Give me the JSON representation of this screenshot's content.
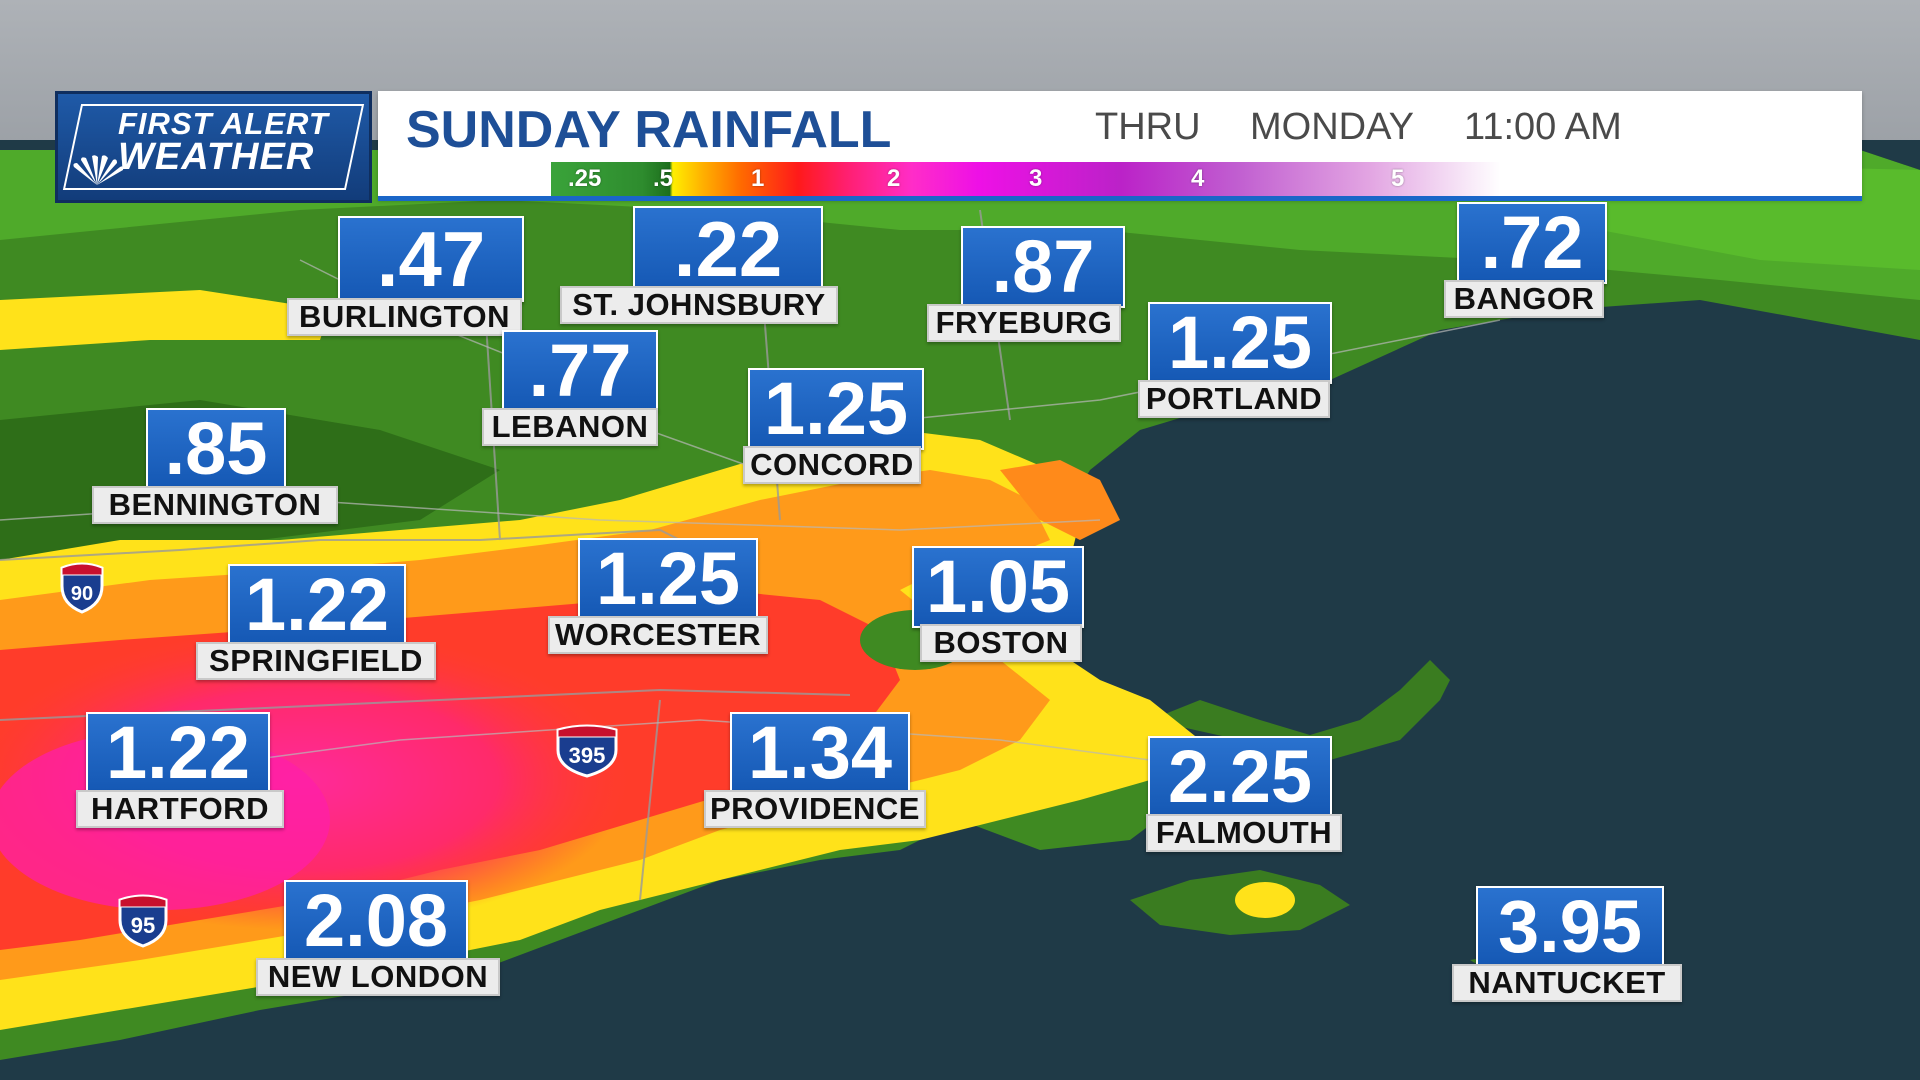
{
  "header": {
    "logo_line1": "FIRST ALERT",
    "logo_line2": "WEATHER",
    "title": "SUNDAY RAINFALL",
    "valid_thru": "THRU",
    "valid_day": "MONDAY",
    "valid_time": "11:00 AM"
  },
  "legend": {
    "labels": [
      ".25",
      ".5",
      "1",
      "2",
      "3",
      "4",
      "5"
    ],
    "colors": [
      "#3aa33a",
      "#1c6e1c",
      "#ffef00",
      "#ff1a1a",
      "#ff2dc8",
      "#bb22c8",
      "#ffffff"
    ]
  },
  "cities": [
    {
      "name": "BURLINGTON",
      "value": ".47"
    },
    {
      "name": "ST. JOHNSBURY",
      "value": ".22"
    },
    {
      "name": "FRYEBURG",
      "value": ".87"
    },
    {
      "name": "BANGOR",
      "value": ".72"
    },
    {
      "name": "PORTLAND",
      "value": "1.25"
    },
    {
      "name": "LEBANON",
      "value": ".77"
    },
    {
      "name": "CONCORD",
      "value": "1.25"
    },
    {
      "name": "BENNINGTON",
      "value": ".85"
    },
    {
      "name": "SPRINGFIELD",
      "value": "1.22"
    },
    {
      "name": "WORCESTER",
      "value": "1.25"
    },
    {
      "name": "BOSTON",
      "value": "1.05"
    },
    {
      "name": "HARTFORD",
      "value": "1.22"
    },
    {
      "name": "PROVIDENCE",
      "value": "1.34"
    },
    {
      "name": "FALMOUTH",
      "value": "2.25"
    },
    {
      "name": "NEW LONDON",
      "value": "2.08"
    },
    {
      "name": "NANTUCKET",
      "value": "3.95"
    }
  ],
  "highways": [
    {
      "label": "90",
      "type": "INTERSTATE"
    },
    {
      "label": "395",
      "type": "INTERSTATE"
    },
    {
      "label": "95",
      "type": "INTERSTATE"
    }
  ],
  "colors": {
    "title": "#1e4f97",
    "value_box": "#1a62c0",
    "ocean": "#1f3a47",
    "land_green": "#3f8a22"
  }
}
